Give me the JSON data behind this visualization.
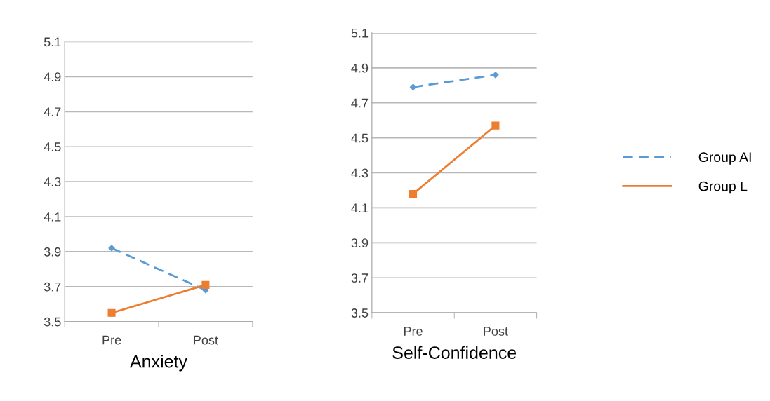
{
  "chart_data": [
    {
      "type": "line",
      "xlabel": "Anxiety",
      "categories": [
        "Pre",
        "Post"
      ],
      "ylim": [
        3.5,
        5.1
      ],
      "yticks": [
        3.5,
        3.7,
        3.9,
        4.1,
        4.3,
        4.5,
        4.7,
        4.9,
        5.1
      ],
      "grid": "y",
      "series": [
        {
          "color": "#5b9bd5",
          "values": [
            3.92,
            3.68
          ],
          "line_style": "dashed",
          "marker": "diamond"
        },
        {
          "color": "#ed7d31",
          "values": [
            3.55,
            3.71
          ],
          "line_style": "solid",
          "marker": "square"
        }
      ]
    },
    {
      "type": "line",
      "xlabel": "Self-Confidence",
      "categories": [
        "Pre",
        "Post"
      ],
      "ylim": [
        3.5,
        5.1
      ],
      "yticks": [
        3.5,
        3.7,
        3.9,
        4.1,
        4.3,
        4.5,
        4.7,
        4.9,
        5.1
      ],
      "grid": "y",
      "legend": "right",
      "series": [
        {
          "name": "Group AI",
          "color": "#5b9bd5",
          "values": [
            4.79,
            4.86
          ],
          "line_style": "dashed",
          "marker": "diamond"
        },
        {
          "name": "Group L",
          "color": "#ed7d31",
          "values": [
            4.18,
            4.57
          ],
          "line_style": "solid",
          "marker": "square"
        }
      ]
    }
  ]
}
